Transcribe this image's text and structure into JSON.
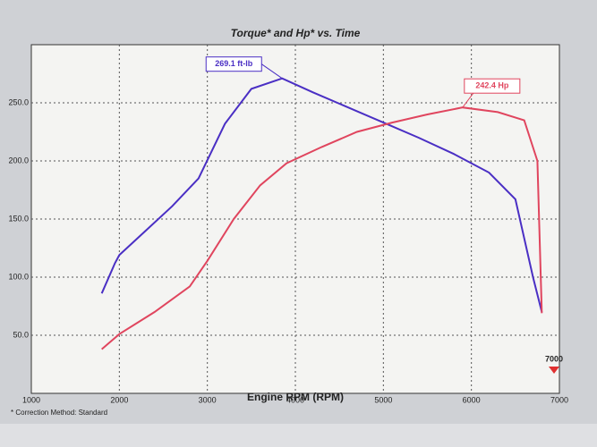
{
  "chart_data": {
    "type": "line",
    "title": "Torque* and Hp* vs. Time",
    "x_label": "Engine RPM (RPM)",
    "footnote": "* Correction Method: Standard",
    "xlim": [
      1000,
      7000
    ],
    "xticks": [
      1000,
      2000,
      3000,
      4000,
      5000,
      6000,
      7000
    ],
    "ylim": [
      0,
      300
    ],
    "yticks": [
      {
        "value": 50,
        "label": "50.0"
      },
      {
        "value": 100,
        "label": "100.0"
      },
      {
        "value": 150,
        "label": "150.0"
      },
      {
        "value": 200,
        "label": "200.0"
      },
      {
        "value": 250,
        "label": "250.0"
      }
    ],
    "grid": true,
    "series": [
      {
        "color": "#4a2fc4",
        "x": [
          1800,
          1950,
          2000,
          2300,
          2600,
          2900,
          3200,
          3500,
          3850,
          4200,
          4600,
          5000,
          5400,
          5800,
          6200,
          6500,
          6700,
          6800
        ],
        "values": [
          86,
          112,
          119,
          140,
          161,
          185,
          232,
          262,
          271,
          259,
          246,
          233,
          220,
          206,
          190,
          167,
          100,
          70
        ]
      },
      {
        "color": "#e0455e",
        "x": [
          1800,
          2000,
          2400,
          2800,
          3000,
          3300,
          3600,
          3900,
          4300,
          4700,
          5100,
          5500,
          5900,
          6300,
          6600,
          6750,
          6800
        ],
        "values": [
          38,
          51,
          70,
          92,
          114,
          150,
          179,
          198,
          212,
          225,
          233,
          240,
          246,
          242,
          235,
          200,
          69
        ]
      }
    ],
    "annotations": [
      {
        "text": "269.1 ft-lb",
        "series": 0,
        "point": 8
      },
      {
        "text": "242.4 Hp",
        "series": 1,
        "point": 12
      },
      {
        "text": "7000"
      }
    ]
  }
}
